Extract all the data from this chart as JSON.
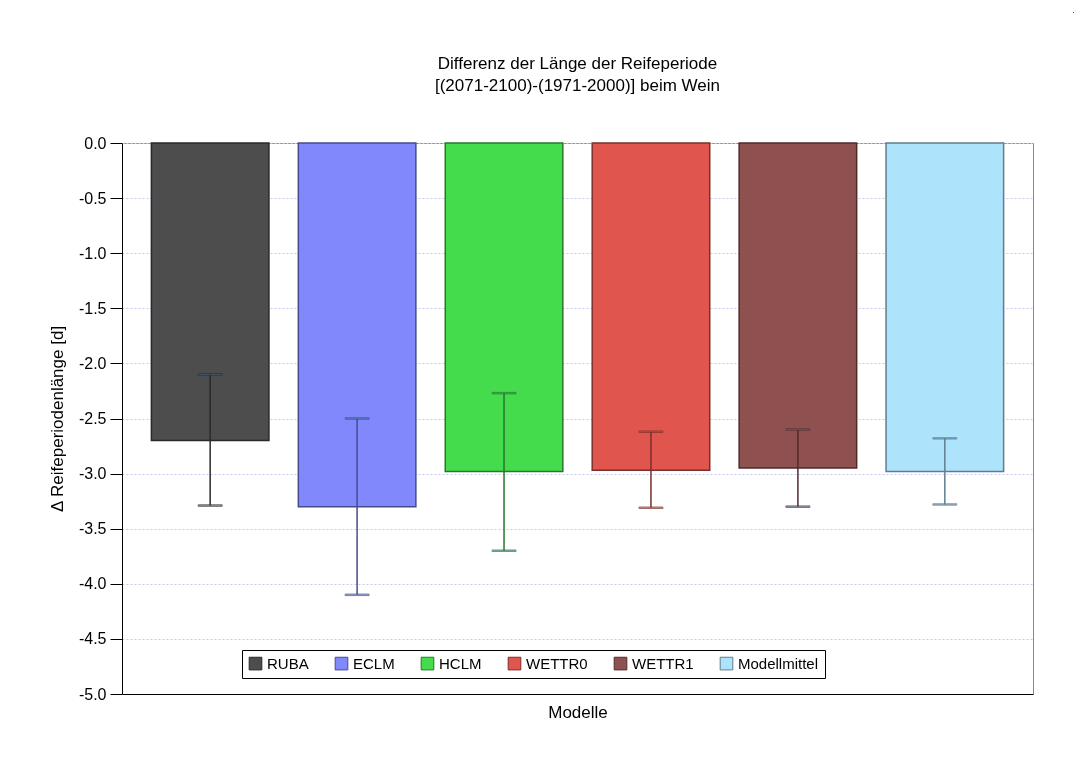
{
  "chart_data": {
    "type": "bar",
    "title": "Differenz der Länge der Reifeperiode\n[(2071-2100)-(1971-2000)] beim Wein",
    "xlabel": "Modelle",
    "ylabel": "Δ Reifeperiodenlänge [d]",
    "categories": [
      null,
      null,
      null,
      null,
      null,
      null
    ],
    "series": [
      {
        "name": "RUBA",
        "color": "#4d4d4d",
        "values": [
          -2.7,
          null,
          null,
          null,
          null,
          null
        ],
        "errors": [
          [
            -3.29,
            -2.1
          ],
          null,
          null,
          null,
          null,
          null
        ]
      },
      {
        "name": "ECLM",
        "color": "#8088fc",
        "values": [
          null,
          -3.3,
          null,
          null,
          null,
          null
        ],
        "errors": [
          null,
          [
            -4.1,
            -2.5
          ],
          null,
          null,
          null,
          null
        ]
      },
      {
        "name": "HCLM",
        "color": "#44dc4c",
        "values": [
          null,
          null,
          -2.98,
          null,
          null,
          null
        ],
        "errors": [
          null,
          null,
          [
            -3.7,
            -2.27
          ],
          null,
          null,
          null
        ]
      },
      {
        "name": "WETTR0",
        "color": "#e0554d",
        "values": [
          null,
          null,
          null,
          -2.97,
          null,
          null
        ],
        "errors": [
          null,
          null,
          null,
          [
            -3.31,
            -2.62
          ],
          null,
          null
        ]
      },
      {
        "name": "WETTR1",
        "color": "#8f5050",
        "values": [
          null,
          null,
          null,
          null,
          -2.95,
          null
        ],
        "errors": [
          null,
          null,
          null,
          null,
          [
            -3.3,
            -2.6
          ],
          null
        ]
      },
      {
        "name": "Modellmittel",
        "color": "#aee3fc",
        "values": [
          null,
          null,
          null,
          null,
          null,
          -2.98
        ],
        "errors": [
          null,
          null,
          null,
          null,
          null,
          [
            -3.28,
            -2.68
          ]
        ]
      }
    ],
    "ylim": [
      -5.0,
      0.0
    ],
    "yticks": [
      {
        "value": 0,
        "label": "0.0"
      },
      -0.5,
      {
        "value": -1,
        "label": "-1.0"
      },
      -1.5,
      {
        "value": -2,
        "label": "-2.0"
      },
      -2.5,
      {
        "value": -3,
        "label": "-3.0"
      },
      -3.5,
      {
        "value": -4,
        "label": "-4.0"
      },
      -4.5,
      {
        "value": -5,
        "label": "-5.0"
      }
    ],
    "grid": "y",
    "legend": "bottom"
  }
}
